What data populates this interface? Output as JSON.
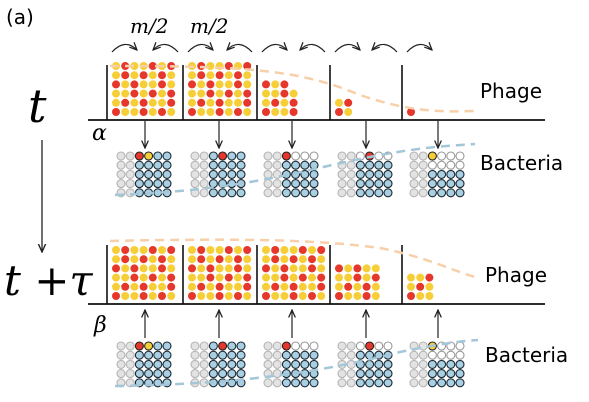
{
  "panel_label": "(a)",
  "top": {
    "split_left": "m/2",
    "split_right": "m/2",
    "time": "t",
    "symbol": "α",
    "phage_label": "Phage",
    "bacteria_label": "Bacteria"
  },
  "bottom": {
    "time": "t +τ",
    "symbol": "β",
    "phage_label": "Phage",
    "bacteria_label": "Bacteria"
  }
}
